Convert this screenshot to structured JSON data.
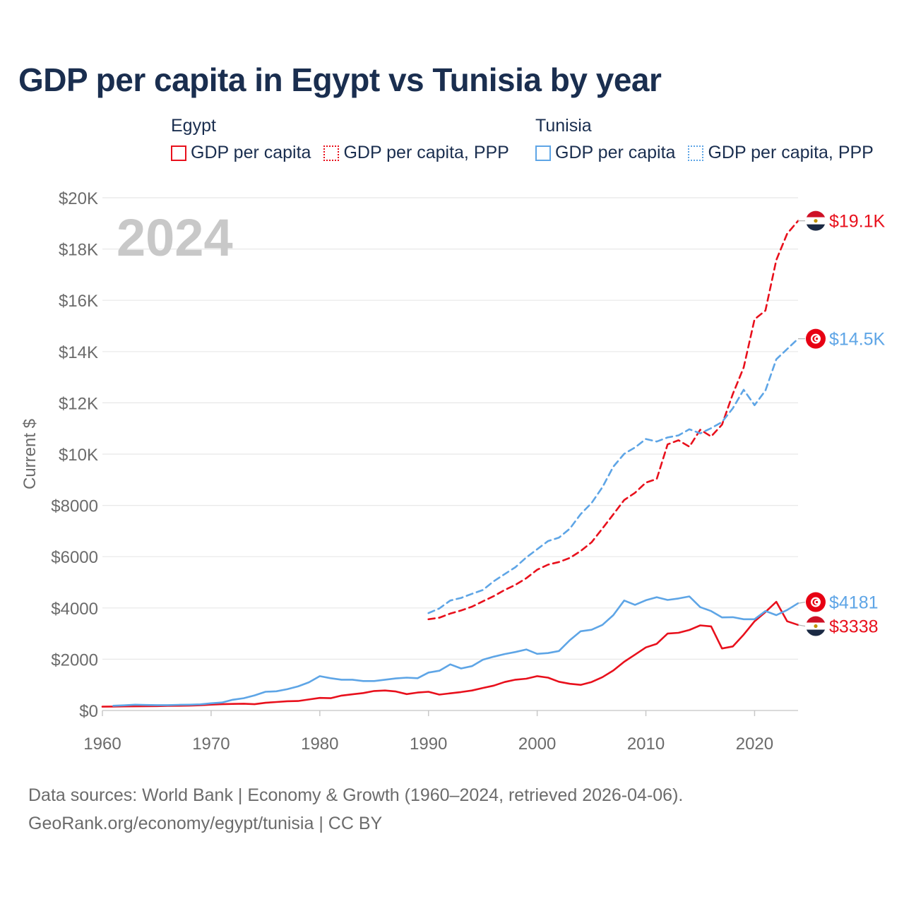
{
  "chart_data": {
    "type": "line",
    "title": "GDP per capita in Egypt vs Tunisia by year",
    "year_label": "2024",
    "ylabel": "Current $",
    "xlabel": "",
    "xlim": [
      1960,
      2024
    ],
    "ylim": [
      0,
      20000
    ],
    "x_ticks": [
      1960,
      1970,
      1980,
      1990,
      2000,
      2010,
      2020
    ],
    "x_tick_labels": [
      "1960",
      "1970",
      "1980",
      "1990",
      "2000",
      "2010",
      "2020"
    ],
    "y_ticks": [
      0,
      2000,
      4000,
      6000,
      8000,
      10000,
      12000,
      14000,
      16000,
      18000,
      20000
    ],
    "y_tick_labels": [
      "$0",
      "$2000",
      "$4000",
      "$6000",
      "$8000",
      "$10K",
      "$12K",
      "$14K",
      "$16K",
      "$18K",
      "$20K"
    ],
    "legend": {
      "groups": [
        {
          "country": "Egypt",
          "items": [
            {
              "label": "GDP per capita",
              "style": "solid",
              "color": "#e8101c"
            },
            {
              "label": "GDP per capita, PPP",
              "style": "dotted",
              "color": "#e8101c"
            }
          ]
        },
        {
          "country": "Tunisia",
          "items": [
            {
              "label": "GDP per capita",
              "style": "solid",
              "color": "#5ea5e6"
            },
            {
              "label": "GDP per capita, PPP",
              "style": "dotted",
              "color": "#5ea5e6"
            }
          ]
        }
      ]
    },
    "series": [
      {
        "name": "Egypt GDP per capita",
        "country": "Egypt",
        "color": "#e8101c",
        "dash": false,
        "start": 1960,
        "values": [
          150,
          155,
          160,
          162,
          165,
          172,
          180,
          185,
          190,
          205,
          230,
          245,
          255,
          265,
          245,
          300,
          330,
          360,
          370,
          430,
          490,
          480,
          580,
          630,
          680,
          760,
          780,
          740,
          640,
          700,
          730,
          620,
          670,
          720,
          780,
          880,
          970,
          1110,
          1200,
          1240,
          1340,
          1280,
          1120,
          1040,
          1000,
          1110,
          1300,
          1560,
          1900,
          2180,
          2460,
          2600,
          3000,
          3030,
          3140,
          3320,
          3280,
          2420,
          2500,
          2960,
          3480,
          3840,
          4240,
          3480,
          3338
        ],
        "end_label": "$3338"
      },
      {
        "name": "Egypt GDP per capita, PPP",
        "country": "Egypt",
        "color": "#e8101c",
        "dash": true,
        "start": 1990,
        "values": [
          3560,
          3620,
          3780,
          3900,
          4050,
          4260,
          4460,
          4700,
          4900,
          5160,
          5490,
          5690,
          5790,
          5950,
          6220,
          6560,
          7100,
          7650,
          8210,
          8490,
          8890,
          9030,
          10380,
          10540,
          10290,
          10950,
          10690,
          11150,
          12350,
          13380,
          15260,
          15600,
          17570,
          18600,
          19100
        ],
        "end_label": "$19.1K"
      },
      {
        "name": "Tunisia GDP per capita",
        "country": "Tunisia",
        "color": "#5ea5e6",
        "dash": false,
        "start": 1961,
        "values": [
          185,
          200,
          225,
          215,
          210,
          210,
          220,
          225,
          240,
          280,
          310,
          420,
          480,
          590,
          730,
          750,
          830,
          940,
          1100,
          1340,
          1260,
          1200,
          1200,
          1150,
          1150,
          1200,
          1250,
          1280,
          1260,
          1480,
          1550,
          1800,
          1640,
          1730,
          1980,
          2100,
          2200,
          2280,
          2380,
          2210,
          2240,
          2320,
          2740,
          3090,
          3150,
          3340,
          3720,
          4290,
          4120,
          4300,
          4420,
          4310,
          4370,
          4450,
          4030,
          3880,
          3630,
          3640,
          3560,
          3560,
          3880,
          3720,
          3920,
          4181
        ],
        "end_label": "$4181"
      },
      {
        "name": "Tunisia GDP per capita, PPP",
        "country": "Tunisia",
        "color": "#5ea5e6",
        "dash": true,
        "start": 1990,
        "values": [
          3800,
          3980,
          4290,
          4390,
          4550,
          4700,
          5040,
          5320,
          5590,
          5970,
          6290,
          6610,
          6740,
          7090,
          7660,
          8090,
          8710,
          9510,
          10010,
          10260,
          10590,
          10490,
          10650,
          10730,
          10970,
          10810,
          11010,
          11250,
          11790,
          12510,
          11910,
          12480,
          13700,
          14100,
          14500
        ],
        "end_label": "$14.5K"
      }
    ]
  },
  "footer": {
    "line1": "Data sources: World Bank | Economy & Growth (1960–2024, retrieved 2026-04-06).",
    "line2": "GeoRank.org/economy/egypt/tunisia | CC BY"
  }
}
